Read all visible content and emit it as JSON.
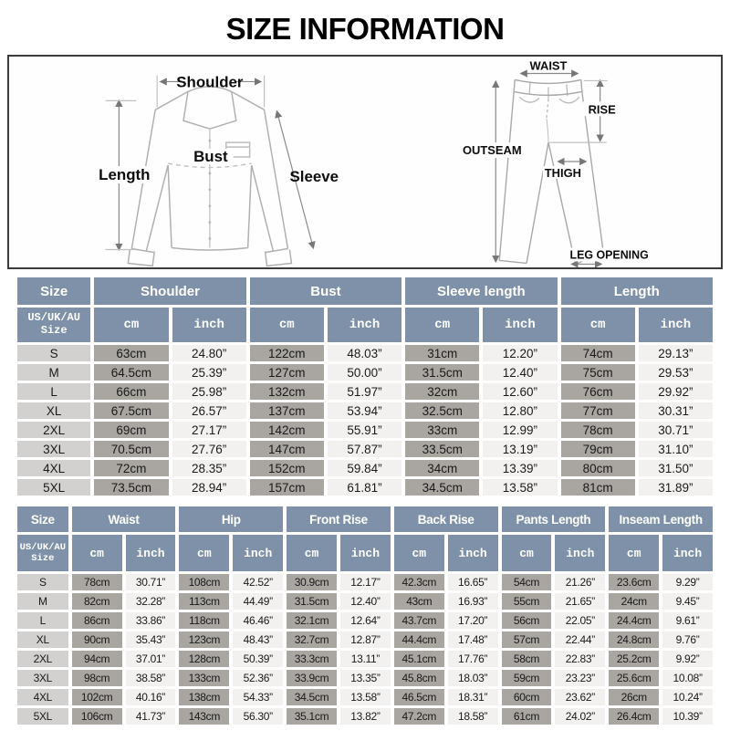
{
  "title": "SIZE INFORMATION",
  "colors": {
    "header_bg": "#7E91A8",
    "header_text": "#FFFFFF",
    "size_cell_bg": "#D2D1D0",
    "cm_cell_bg": "#A9A5A0",
    "inch_cell_bg": "#F2F1F0",
    "body_text": "#1A1A1A",
    "diagram_line": "#B0B0B0",
    "annotation_line": "#8A8A8A"
  },
  "diagrams": {
    "shirt": {
      "shoulder": "Shoulder",
      "length": "Length",
      "bust": "Bust",
      "sleeve": "Sleeve"
    },
    "pants": {
      "waist": "WAIST",
      "rise": "RISE",
      "outseam": "OUTSEAM",
      "thigh": "THIGH",
      "leg_opening": "LEG OPENING"
    }
  },
  "shirt_table": {
    "group_headers": [
      "Size",
      "Shoulder",
      "Bust",
      "Sleeve length",
      "Length"
    ],
    "size_column_header": "US/UK/AU\nSize",
    "unit_cm": "cm",
    "unit_inch": "inch",
    "rows": [
      {
        "size": "S",
        "values": [
          "63cm",
          "24.80”",
          "122cm",
          "48.03”",
          "31cm",
          "12.20”",
          "74cm",
          "29.13”"
        ]
      },
      {
        "size": "M",
        "values": [
          "64.5cm",
          "25.39”",
          "127cm",
          "50.00”",
          "31.5cm",
          "12.40”",
          "75cm",
          "29.53”"
        ]
      },
      {
        "size": "L",
        "values": [
          "66cm",
          "25.98”",
          "132cm",
          "51.97”",
          "32cm",
          "12.60”",
          "76cm",
          "29.92”"
        ]
      },
      {
        "size": "XL",
        "values": [
          "67.5cm",
          "26.57”",
          "137cm",
          "53.94”",
          "32.5cm",
          "12.80”",
          "77cm",
          "30.31”"
        ]
      },
      {
        "size": "2XL",
        "values": [
          "69cm",
          "27.17”",
          "142cm",
          "55.91”",
          "33cm",
          "12.99”",
          "78cm",
          "30.71”"
        ]
      },
      {
        "size": "3XL",
        "values": [
          "70.5cm",
          "27.76”",
          "147cm",
          "57.87”",
          "33.5cm",
          "13.19”",
          "79cm",
          "31.10”"
        ]
      },
      {
        "size": "4XL",
        "values": [
          "72cm",
          "28.35”",
          "152cm",
          "59.84”",
          "34cm",
          "13.39”",
          "80cm",
          "31.50”"
        ]
      },
      {
        "size": "5XL",
        "values": [
          "73.5cm",
          "28.94”",
          "157cm",
          "61.81”",
          "34.5cm",
          "13.58”",
          "81cm",
          "31.89”"
        ]
      }
    ]
  },
  "pants_table": {
    "group_headers": [
      "Size",
      "Waist",
      "Hip",
      "Front Rise",
      "Back Rise",
      "Pants Length",
      "Inseam Length"
    ],
    "size_column_header": "US/UK/AU\nSize",
    "unit_cm": "cm",
    "unit_inch": "inch",
    "rows": [
      {
        "size": "S",
        "values": [
          "78cm",
          "30.71”",
          "108cm",
          "42.52”",
          "30.9cm",
          "12.17”",
          "42.3cm",
          "16.65”",
          "54cm",
          "21.26”",
          "23.6cm",
          "9.29”"
        ]
      },
      {
        "size": "M",
        "values": [
          "82cm",
          "32.28”",
          "113cm",
          "44.49”",
          "31.5cm",
          "12.40”",
          "43cm",
          "16.93”",
          "55cm",
          "21.65”",
          "24cm",
          "9.45”"
        ]
      },
      {
        "size": "L",
        "values": [
          "86cm",
          "33.86”",
          "118cm",
          "46.46”",
          "32.1cm",
          "12.64”",
          "43.7cm",
          "17.20”",
          "56cm",
          "22.05”",
          "24.4cm",
          "9.61”"
        ]
      },
      {
        "size": "XL",
        "values": [
          "90cm",
          "35.43”",
          "123cm",
          "48.43”",
          "32.7cm",
          "12.87”",
          "44.4cm",
          "17.48”",
          "57cm",
          "22.44”",
          "24.8cm",
          "9.76”"
        ]
      },
      {
        "size": "2XL",
        "values": [
          "94cm",
          "37.01”",
          "128cm",
          "50.39”",
          "33.3cm",
          "13.11”",
          "45.1cm",
          "17.76”",
          "58cm",
          "22.83”",
          "25.2cm",
          "9.92”"
        ]
      },
      {
        "size": "3XL",
        "values": [
          "98cm",
          "38.58”",
          "133cm",
          "52.36”",
          "33.9cm",
          "13.35”",
          "45.8cm",
          "18.03”",
          "59cm",
          "23.23”",
          "25.6cm",
          "10.08”"
        ]
      },
      {
        "size": "4XL",
        "values": [
          "102cm",
          "40.16”",
          "138cm",
          "54.33”",
          "34.5cm",
          "13.58”",
          "46.5cm",
          "18.31”",
          "60cm",
          "23.62”",
          "26cm",
          "10.24”"
        ]
      },
      {
        "size": "5XL",
        "values": [
          "106cm",
          "41.73”",
          "143cm",
          "56.30”",
          "35.1cm",
          "13.82”",
          "47.2cm",
          "18.58”",
          "61cm",
          "24.02”",
          "26.4cm",
          "10.39”"
        ]
      }
    ]
  }
}
